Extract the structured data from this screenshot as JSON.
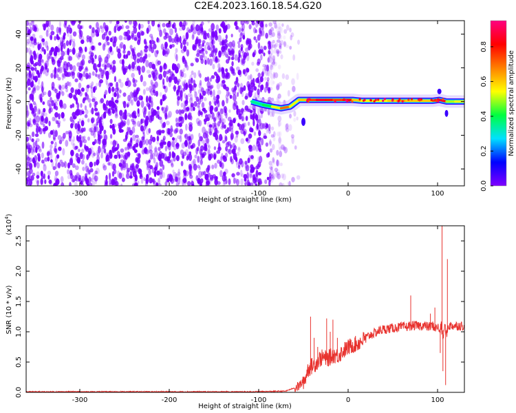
{
  "title": "C2E4.2023.160.18.54.G20",
  "chart_data": [
    {
      "type": "heatmap",
      "xlabel": "Height of straight line (km)",
      "ylabel": "Frequency (Hz)",
      "xlim": [
        -360,
        130
      ],
      "ylim": [
        -50,
        48
      ],
      "xticks": [
        -300,
        -200,
        -100,
        0,
        100
      ],
      "yticks": [
        -40,
        -20,
        0,
        20,
        40
      ],
      "colorbar": {
        "label": "Normalized spectral amplitude",
        "range": [
          0.0,
          0.95
        ],
        "ticks": [
          0.0,
          0.2,
          0.4,
          0.6,
          0.8
        ],
        "colormap": [
          "#8000ff",
          "#0000ff",
          "#00e0ff",
          "#00ff40",
          "#ffff00",
          "#ff8000",
          "#ff0000",
          "#ff0080"
        ]
      },
      "noise_region_x": [
        -360,
        -75
      ],
      "noise_color": "#7a00ff",
      "signal_track": {
        "x": [
          -108,
          -95,
          -85,
          -75,
          -65,
          -55,
          -45,
          -35,
          -25,
          -15,
          -5,
          5,
          15,
          25,
          35,
          45,
          55,
          65,
          75,
          85,
          95,
          102,
          110,
          120,
          130
        ],
        "frequency": [
          0,
          -2,
          -3,
          -4,
          -3,
          1,
          1,
          1,
          1,
          1,
          1,
          1,
          0.5,
          0.5,
          0.5,
          0.5,
          0.5,
          0.5,
          0.5,
          0.5,
          0.5,
          1,
          0,
          0,
          0
        ],
        "amplitude": [
          0.35,
          0.4,
          0.55,
          0.7,
          0.55,
          0.6,
          0.75,
          0.85,
          0.8,
          0.75,
          0.8,
          0.6,
          0.55,
          0.55,
          0.55,
          0.6,
          0.65,
          0.6,
          0.6,
          0.6,
          0.75,
          0.85,
          0.5,
          0.55,
          0.5
        ]
      }
    },
    {
      "type": "line",
      "xlabel": "Height of straight line (km)",
      "ylabel": "SNR (10 * v/v)",
      "scale_label": "(x10",
      "scale_exp": "4",
      "scale_close": ")",
      "xlim": [
        -360,
        130
      ],
      "ylim": [
        0,
        2.75
      ],
      "xticks": [
        -300,
        -200,
        -100,
        0,
        100
      ],
      "yticks": [
        0.0,
        0.5,
        1.0,
        1.5,
        2.0,
        2.5
      ],
      "ytick_labels": [
        "0.0",
        "0.5",
        "1.0",
        "1.5",
        "2.0",
        "2.5"
      ],
      "color": "#e8322e",
      "series": [
        {
          "x": [
            -360,
            -300,
            -200,
            -110,
            -70,
            -55,
            -48,
            -45,
            -42,
            -39,
            -36,
            -32,
            -28,
            -24,
            -20,
            -16,
            -12,
            -8,
            -4,
            0,
            5,
            10,
            15,
            20,
            25,
            30,
            35,
            40,
            45,
            50,
            55,
            60,
            65,
            70,
            75,
            80,
            85,
            90,
            95,
            98,
            100,
            102,
            104,
            106,
            108,
            110,
            112,
            115,
            120,
            125,
            130
          ],
          "y": [
            0.01,
            0.01,
            0.01,
            0.01,
            0.02,
            0.1,
            0.22,
            0.38,
            0.42,
            0.45,
            0.48,
            0.55,
            0.58,
            0.55,
            0.58,
            0.62,
            0.6,
            0.65,
            0.7,
            0.74,
            0.78,
            0.8,
            0.85,
            0.9,
            0.95,
            0.98,
            1.02,
            1.04,
            1.05,
            1.06,
            1.07,
            1.08,
            1.08,
            1.1,
            1.1,
            1.1,
            1.1,
            1.08,
            1.1,
            1.05,
            1.1,
            1.0,
            1.1,
            0.9,
            1.1,
            0.95,
            1.1,
            1.1,
            1.1,
            1.1,
            1.1
          ]
        }
      ],
      "spikes": [
        {
          "x": -42,
          "y": 1.25
        },
        {
          "x": -38,
          "y": 0.9
        },
        {
          "x": -34,
          "y": 0.75
        },
        {
          "x": -24,
          "y": 1.22
        },
        {
          "x": -20,
          "y": 1.0
        },
        {
          "x": -17,
          "y": 1.2
        },
        {
          "x": -12,
          "y": 0.9
        },
        {
          "x": 70,
          "y": 1.6
        },
        {
          "x": 92,
          "y": 1.3
        },
        {
          "x": 97,
          "y": 1.4
        },
        {
          "x": 105,
          "y": 2.75
        },
        {
          "x": 111,
          "y": 2.2
        }
      ],
      "dips": [
        {
          "x": 103,
          "y": 0.65
        },
        {
          "x": 106,
          "y": 0.35
        },
        {
          "x": 109,
          "y": 0.12
        }
      ]
    }
  ]
}
